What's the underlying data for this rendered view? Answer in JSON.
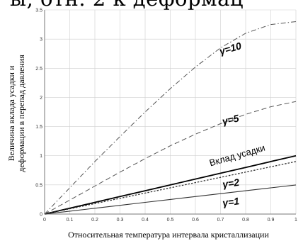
{
  "header": {
    "partial_text": "ы, отн. 2 к деформац"
  },
  "chart_data": {
    "type": "line",
    "title": "",
    "xlabel": "Относительная температура интервала кристаллизации",
    "ylabel_lines": [
      "Величина вклада усадки и",
      "деформации в перепад давления"
    ],
    "xlim": [
      0,
      1
    ],
    "ylim": [
      0,
      3.5
    ],
    "x_ticks": [
      0,
      0.1,
      0.2,
      0.3,
      0.4,
      0.5,
      0.6,
      0.7,
      0.8,
      0.9,
      1
    ],
    "y_ticks": [
      0,
      0.5,
      1,
      1.5,
      2,
      2.5,
      3,
      3.5
    ],
    "x_tick_labels": [
      "0",
      "0.1",
      "0.2",
      "0.3",
      "0.4",
      "0.5",
      "0.6",
      "0.7",
      "0.8",
      "0.9",
      "1"
    ],
    "y_tick_labels": [
      "0",
      "0.5",
      "1",
      "1.5",
      "2",
      "2.5",
      "3",
      "3.5"
    ],
    "grid": true,
    "x": [
      0,
      0.1,
      0.2,
      0.3,
      0.4,
      0.5,
      0.6,
      0.7,
      0.8,
      0.9,
      1.0
    ],
    "series": [
      {
        "name": "Вклад усадки",
        "style": "solid-bold",
        "color": "#000000",
        "values": [
          0,
          0.1,
          0.2,
          0.3,
          0.4,
          0.5,
          0.6,
          0.7,
          0.8,
          0.9,
          1.0
        ]
      },
      {
        "name": "γ=1",
        "style": "solid",
        "color": "#333333",
        "values": [
          0,
          0.05,
          0.1,
          0.15,
          0.2,
          0.25,
          0.3,
          0.35,
          0.4,
          0.45,
          0.5
        ]
      },
      {
        "name": "γ=2",
        "style": "dotted",
        "color": "#333333",
        "values": [
          0,
          0.09,
          0.18,
          0.27,
          0.36,
          0.45,
          0.54,
          0.63,
          0.72,
          0.81,
          0.9
        ]
      },
      {
        "name": "γ=5",
        "style": "dashed",
        "color": "#555555",
        "values": [
          0,
          0.24,
          0.48,
          0.72,
          0.95,
          1.17,
          1.37,
          1.55,
          1.71,
          1.84,
          1.93
        ]
      },
      {
        "name": "γ=10",
        "style": "dashdot",
        "color": "#555555",
        "values": [
          0,
          0.45,
          0.9,
          1.33,
          1.75,
          2.15,
          2.52,
          2.85,
          3.1,
          3.25,
          3.3
        ]
      }
    ],
    "annotations": [
      {
        "text": "γ=10",
        "x": 0.7,
        "y": 2.73,
        "rotate": -16,
        "style": "italic"
      },
      {
        "text": "γ=5",
        "x": 0.71,
        "y": 1.53,
        "rotate": -12,
        "style": "italic"
      },
      {
        "text": "Вклад усадки",
        "x": 0.66,
        "y": 0.82,
        "rotate": -16,
        "style": "plain"
      },
      {
        "text": "γ=2",
        "x": 0.71,
        "y": 0.45,
        "rotate": -8,
        "style": "italic"
      },
      {
        "text": "γ=1",
        "x": 0.71,
        "y": 0.13,
        "rotate": -8,
        "style": "italic"
      }
    ]
  }
}
